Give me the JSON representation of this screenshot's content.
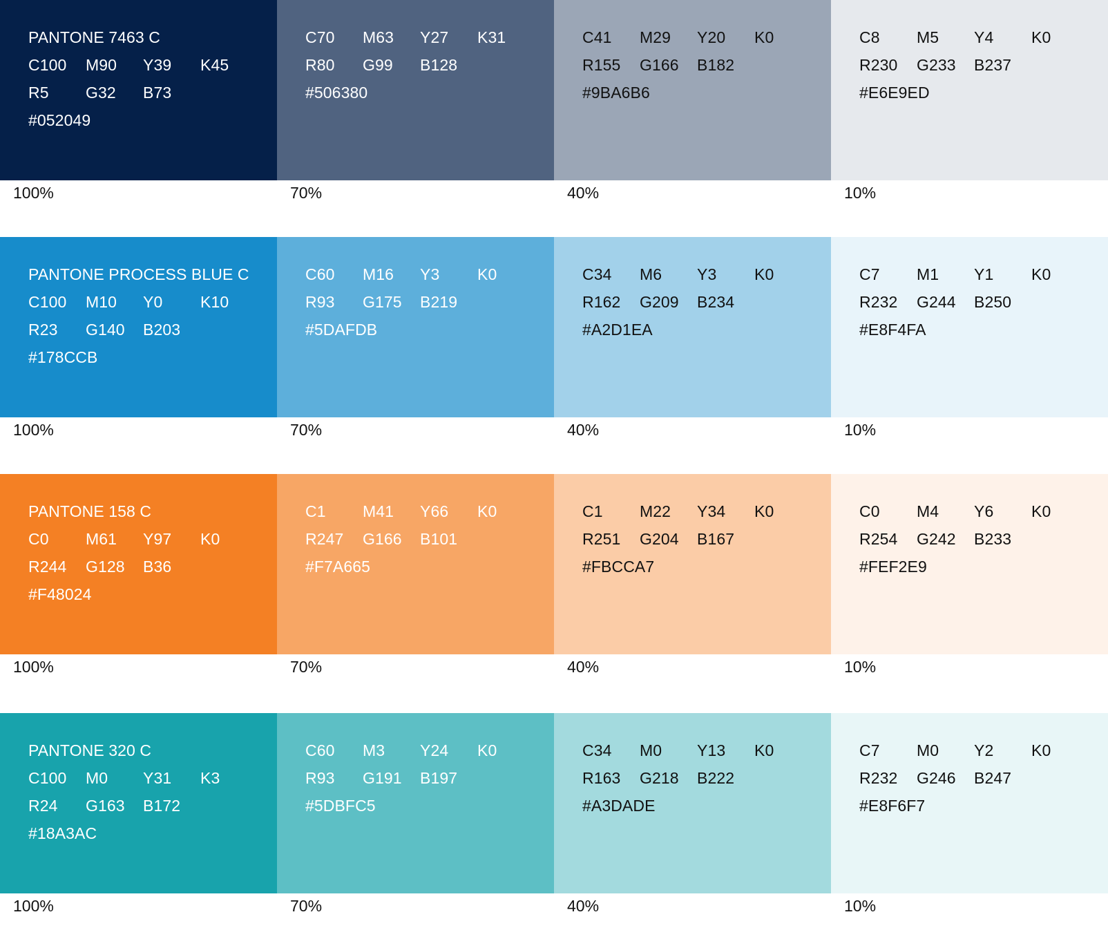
{
  "palettes": [
    {
      "shades": [
        {
          "name": "PANTONE 7463 C",
          "cmyk": [
            "C100",
            "M90",
            "Y39",
            "K45"
          ],
          "rgb": [
            "R5",
            "G32",
            "B73"
          ],
          "hex": "#052049",
          "percent": "100%",
          "bg": "#052049",
          "fg": "#ffffff"
        },
        {
          "cmyk": [
            "C70",
            "M63",
            "Y27",
            "K31"
          ],
          "rgb": [
            "R80",
            "G99",
            "B128"
          ],
          "hex": "#506380",
          "percent": "70%",
          "bg": "#506380",
          "fg": "#ffffff"
        },
        {
          "cmyk": [
            "C41",
            "M29",
            "Y20",
            "K0"
          ],
          "rgb": [
            "R155",
            "G166",
            "B182"
          ],
          "hex": "#9BA6B6",
          "percent": "40%",
          "bg": "#9BA6B6",
          "fg": "#111111"
        },
        {
          "cmyk": [
            "C8",
            "M5",
            "Y4",
            "K0"
          ],
          "rgb": [
            "R230",
            "G233",
            "B237"
          ],
          "hex": "#E6E9ED",
          "percent": "10%",
          "bg": "#E6E9ED",
          "fg": "#111111"
        }
      ]
    },
    {
      "shades": [
        {
          "name": "PANTONE PROCESS BLUE C",
          "cmyk": [
            "C100",
            "M10",
            "Y0",
            "K10"
          ],
          "rgb": [
            "R23",
            "G140",
            "B203"
          ],
          "hex": "#178CCB",
          "percent": "100%",
          "bg": "#178CCB",
          "fg": "#ffffff"
        },
        {
          "cmyk": [
            "C60",
            "M16",
            "Y3",
            "K0"
          ],
          "rgb": [
            "R93",
            "G175",
            "B219"
          ],
          "hex": "#5DAFDB",
          "percent": "70%",
          "bg": "#5DAFDB",
          "fg": "#ffffff"
        },
        {
          "cmyk": [
            "C34",
            "M6",
            "Y3",
            "K0"
          ],
          "rgb": [
            "R162",
            "G209",
            "B234"
          ],
          "hex": "#A2D1EA",
          "percent": "40%",
          "bg": "#A2D1EA",
          "fg": "#111111"
        },
        {
          "cmyk": [
            "C7",
            "M1",
            "Y1",
            "K0"
          ],
          "rgb": [
            "R232",
            "G244",
            "B250"
          ],
          "hex": "#E8F4FA",
          "percent": "10%",
          "bg": "#E8F4FA",
          "fg": "#111111"
        }
      ]
    },
    {
      "shades": [
        {
          "name": "PANTONE 158 C",
          "cmyk": [
            "C0",
            "M61",
            "Y97",
            "K0"
          ],
          "rgb": [
            "R244",
            "G128",
            "B36"
          ],
          "hex": "#F48024",
          "percent": "100%",
          "bg": "#F48024",
          "fg": "#ffffff"
        },
        {
          "cmyk": [
            "C1",
            "M41",
            "Y66",
            "K0"
          ],
          "rgb": [
            "R247",
            "G166",
            "B101"
          ],
          "hex": "#F7A665",
          "percent": "70%",
          "bg": "#F7A665",
          "fg": "#ffffff"
        },
        {
          "cmyk": [
            "C1",
            "M22",
            "Y34",
            "K0"
          ],
          "rgb": [
            "R251",
            "G204",
            "B167"
          ],
          "hex": "#FBCCA7",
          "percent": "40%",
          "bg": "#FBCCA7",
          "fg": "#111111"
        },
        {
          "cmyk": [
            "C0",
            "M4",
            "Y6",
            "K0"
          ],
          "rgb": [
            "R254",
            "G242",
            "B233"
          ],
          "hex": "#FEF2E9",
          "percent": "10%",
          "bg": "#FEF2E9",
          "fg": "#111111"
        }
      ]
    },
    {
      "shades": [
        {
          "name": "PANTONE 320 C",
          "cmyk": [
            "C100",
            "M0",
            "Y31",
            "K3"
          ],
          "rgb": [
            "R24",
            "G163",
            "B172"
          ],
          "hex": "#18A3AC",
          "percent": "100%",
          "bg": "#18A3AC",
          "fg": "#ffffff"
        },
        {
          "cmyk": [
            "C60",
            "M3",
            "Y24",
            "K0"
          ],
          "rgb": [
            "R93",
            "G191",
            "B197"
          ],
          "hex": "#5DBFC5",
          "percent": "70%",
          "bg": "#5DBFC5",
          "fg": "#ffffff"
        },
        {
          "cmyk": [
            "C34",
            "M0",
            "Y13",
            "K0"
          ],
          "rgb": [
            "R163",
            "G218",
            "B222"
          ],
          "hex": "#A3DADE",
          "percent": "40%",
          "bg": "#A3DADE",
          "fg": "#111111"
        },
        {
          "cmyk": [
            "C7",
            "M0",
            "Y2",
            "K0"
          ],
          "rgb": [
            "R232",
            "G246",
            "B247"
          ],
          "hex": "#E8F6F7",
          "percent": "10%",
          "bg": "#E8F6F7",
          "fg": "#111111"
        }
      ]
    }
  ]
}
